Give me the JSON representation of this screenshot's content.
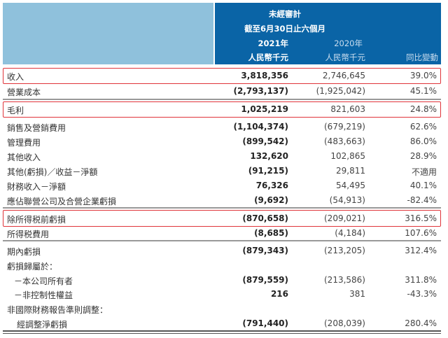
{
  "header": {
    "audit": "未經審計",
    "period": "截至6月30日止六個月",
    "year_2021": "2021年",
    "year_2020": "2020年",
    "unit_2021": "人民幣千元",
    "unit_2020": "人民幣千元",
    "change": "同比變動"
  },
  "rows": [
    {
      "label": "收入",
      "v2021": "3,818,356",
      "v2020": "2,746,645",
      "change": "39.0%"
    },
    {
      "label": "營業成本",
      "v2021": "(2,793,137)",
      "v2020": "(1,925,042)",
      "change": "45.1%"
    },
    {
      "label": "毛利",
      "v2021": "1,025,219",
      "v2020": "821,603",
      "change": "24.8%"
    },
    {
      "label": "銷售及營銷費用",
      "v2021": "(1,104,374)",
      "v2020": "(679,219)",
      "change": "62.6%"
    },
    {
      "label": "管理費用",
      "v2021": "(899,542)",
      "v2020": "(483,663)",
      "change": "86.0%"
    },
    {
      "label": "其他收入",
      "v2021": "132,620",
      "v2020": "102,865",
      "change": "28.9%"
    },
    {
      "label": "其他(虧損)／收益－淨額",
      "v2021": "(91,215)",
      "v2020": "29,811",
      "change": "不適用"
    },
    {
      "label": "財務收入－淨額",
      "v2021": "76,326",
      "v2020": "54,495",
      "change": "40.1%"
    },
    {
      "label": "應佔聯營公司及合營企業虧損",
      "v2021": "(9,692)",
      "v2020": "(54,913)",
      "change": "-82.4%"
    },
    {
      "label": "除所得税前虧損",
      "v2021": "(870,658)",
      "v2020": "(209,021)",
      "change": "316.5%"
    },
    {
      "label": "所得税費用",
      "v2021": "(8,685)",
      "v2020": "(4,184)",
      "change": "107.6%"
    },
    {
      "label": "期內虧損",
      "v2021": "(879,343)",
      "v2020": "(213,205)",
      "change": "312.4%"
    },
    {
      "label": "虧損歸屬於：",
      "v2021": "",
      "v2020": "",
      "change": ""
    },
    {
      "label": "－本公司所有者",
      "v2021": "(879,559)",
      "v2020": "(213,586)",
      "change": "311.8%"
    },
    {
      "label": "－非控制性權益",
      "v2021": "216",
      "v2020": "381",
      "change": "-43.3%"
    },
    {
      "label": "非國際財務報告準則調整：",
      "v2021": "",
      "v2020": "",
      "change": ""
    },
    {
      "label": "經調整淨虧損",
      "v2021": "(791,440)",
      "v2020": "(208,039)",
      "change": "280.4%"
    }
  ],
  "highlight_color": "#e0343a",
  "header_color": "#0a64a6"
}
